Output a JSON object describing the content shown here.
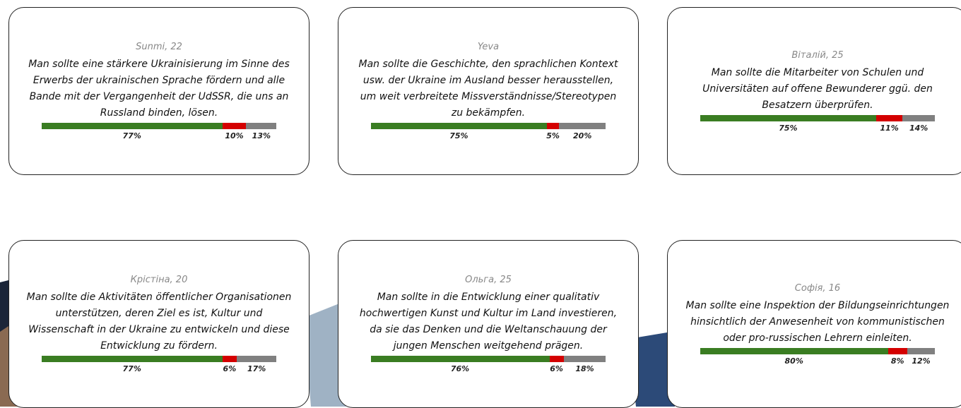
{
  "cards": [
    {
      "author": "Sunmi, 22",
      "text": "Man sollte eine stärkere Ukrainisierung im Sinne des Erwerbs der ukrainischen Sprache fördern und alle Bande mit der Vergangenheit der UdSSR, die uns an Russland binden, lösen.",
      "values": [
        77,
        10,
        13
      ],
      "value_labels": [
        "77%",
        "10%",
        "13%"
      ]
    },
    {
      "author": "Yeva",
      "text": "Man sollte die Geschichte, den sprachlichen Kontext usw. der Ukraine im Ausland besser herausstellen, um weit verbreitete Missverständnisse/Stereotypen zu bekämpfen.",
      "values": [
        75,
        5,
        20
      ],
      "value_labels": [
        "75%",
        "5%",
        "20%"
      ]
    },
    {
      "author": "Віталій, 25",
      "text": "Man sollte die Mitarbeiter von Schulen und Universitäten auf offene Bewunderer ggü. den Besatzern überprüfen.",
      "values": [
        75,
        11,
        14
      ],
      "value_labels": [
        "75%",
        "11%",
        "14%"
      ]
    },
    {
      "author": "Крістіна, 20",
      "text": "Man sollte die Aktivitäten öffentlicher Organisationen unterstützen, deren Ziel es ist, Kultur und Wissenschaft in der Ukraine zu entwickeln und diese Entwicklung zu fördern.",
      "values": [
        77,
        6,
        17
      ],
      "value_labels": [
        "77%",
        "6%",
        "17%"
      ]
    },
    {
      "author": "Ольга, 25",
      "text": "Man sollte in die Entwicklung einer qualitativ hochwertigen Kunst und Kultur im Land investieren, da sie das Denken und die Weltanschauung der jungen Menschen weitgehend prägen.",
      "values": [
        76,
        6,
        18
      ],
      "value_labels": [
        "76%",
        "6%",
        "18%"
      ]
    },
    {
      "author": "Софія, 16",
      "text": "Man sollte eine Inspektion der Bildungseinrichtungen hinsichtlich der Anwesenheit von kommunistischen oder pro-russischen Lehrern einleiten.",
      "values": [
        80,
        8,
        12
      ],
      "value_labels": [
        "80%",
        "8%",
        "12%"
      ]
    }
  ]
}
